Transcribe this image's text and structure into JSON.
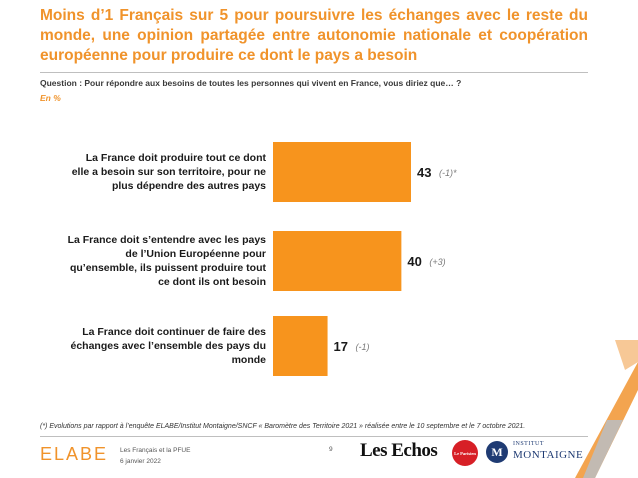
{
  "title": "Moins d’1 Français sur 5 pour poursuivre les échanges avec le reste du monde, une opinion partagée entre autonomie nationale et coopération européenne pour produire ce dont le pays a besoin",
  "question": "Question : Pour répondre aux besoins de toutes les personnes qui vivent en France, vous diriez que… ?",
  "unit": "En %",
  "chart_data": {
    "type": "bar",
    "orientation": "horizontal",
    "categories": [
      [
        "La France doit produire tout ce dont",
        "elle a besoin sur son territoire, pour ne",
        "plus dépendre des autres pays"
      ],
      [
        "La France doit s’entendre avec les pays",
        "de l’Union Européenne pour",
        "qu’ensemble, ils puissent produire tout",
        "ce dont ils ont besoin"
      ],
      [
        "La France doit continuer de faire des",
        "échanges avec l’ensemble des pays du",
        "monde"
      ]
    ],
    "values": [
      43,
      40,
      17
    ],
    "value_labels": [
      "43",
      "40",
      "17"
    ],
    "evolutions": [
      "(-1)*",
      "(+3)",
      "(-1)"
    ],
    "xlim": [
      0,
      100
    ],
    "color": "#f7941d",
    "grid": false,
    "legend": "none"
  },
  "footnote": "(*) Evolutions par rapport à l’enquête ELABE/Institut Montaigne/SNCF « Baromètre des Territoire 2021 » réalisée entre le 10 septembre et le 7 octobre 2021.",
  "footer": {
    "brand": "ELABE",
    "survey_name": "Les Français et la PFUE",
    "survey_date": "6 janvier 2022",
    "page_number": "9",
    "partner_1": "Les Echos",
    "partner_2": "Le Parisien",
    "partner_3_small": "INSTITUT",
    "partner_3_big": "MONTAIGNE",
    "partner_3_letter": "M"
  },
  "colors": {
    "accent": "#f0932b",
    "bar": "#f7941d",
    "montaigne": "#1f3b73"
  }
}
